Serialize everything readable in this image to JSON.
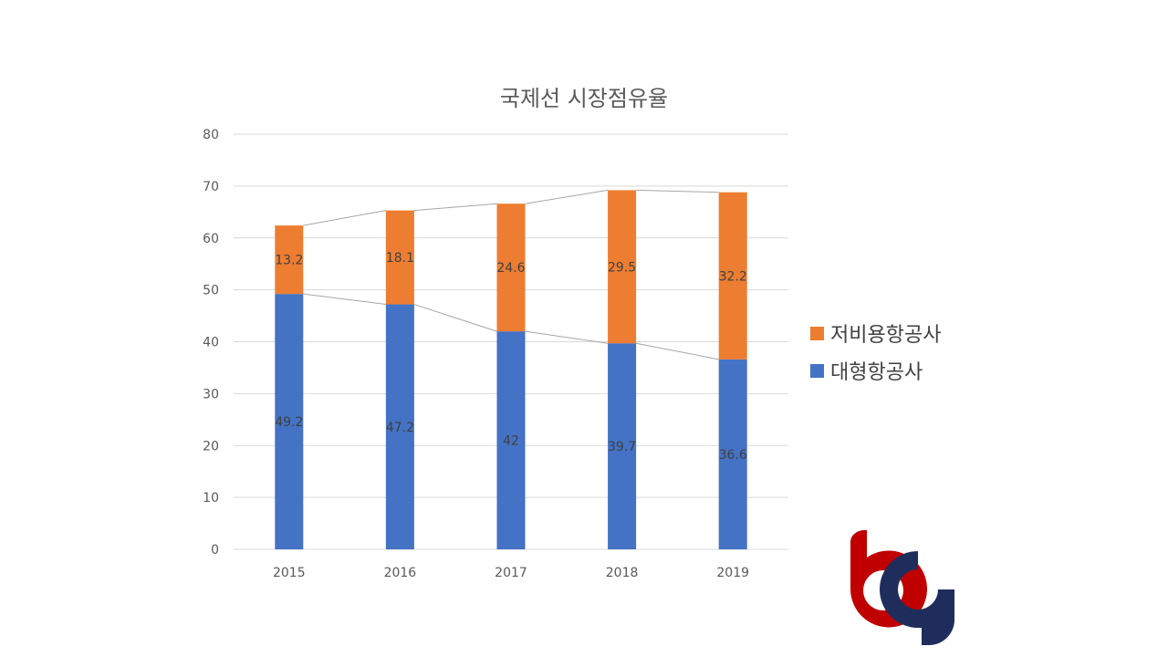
{
  "chart_data": {
    "type": "bar",
    "stacked": true,
    "title": "국제선 시장점유율",
    "xlabel": "",
    "ylabel": "",
    "categories": [
      "2015",
      "2016",
      "2017",
      "2018",
      "2019"
    ],
    "ylim": [
      0,
      80
    ],
    "yticks": [
      0,
      10,
      20,
      30,
      40,
      50,
      60,
      70,
      80
    ],
    "grid": true,
    "legend_position": "right",
    "series_lines": true,
    "series": [
      {
        "name": "대형항공사",
        "color": "#4472C4",
        "values": [
          49.2,
          47.2,
          42,
          39.7,
          36.6
        ]
      },
      {
        "name": "저비용항공사",
        "color": "#ED7D31",
        "values": [
          13.2,
          18.1,
          24.6,
          29.5,
          32.2
        ]
      }
    ]
  },
  "logo": {
    "name": "bg-logo",
    "red": "#C00000",
    "navy": "#1F2D5C"
  }
}
